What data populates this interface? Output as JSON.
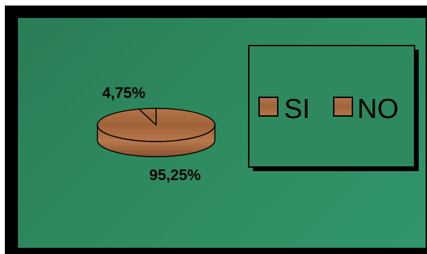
{
  "chart_data": {
    "type": "pie",
    "style": "3d",
    "slices": [
      {
        "label": "SI",
        "value": 4.75,
        "data_label": "4,75%"
      },
      {
        "label": "NO",
        "value": 95.25,
        "data_label": "95,25%"
      }
    ],
    "legend": {
      "placement": "top-right",
      "entries": [
        "SI",
        "NO"
      ]
    },
    "colors": {
      "background": "#2e8a5e",
      "slice_fill": "#a5683c",
      "slice_dark": "#7d4a26",
      "outline": "#000000"
    }
  }
}
